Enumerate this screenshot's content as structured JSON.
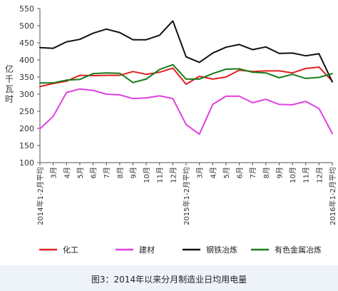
{
  "figure": {
    "caption": "图3：2014年以来分月制造业日均用电量"
  },
  "chart_data": {
    "type": "line",
    "ylabel": "亿千瓦时",
    "ylim": [
      100,
      550
    ],
    "yticks": [
      100,
      150,
      200,
      250,
      300,
      350,
      400,
      450,
      500,
      550
    ],
    "categories": [
      "2014年1-2月平均",
      "3月",
      "4月",
      "5月",
      "6月",
      "7月",
      "8月",
      "9月",
      "10月",
      "11月",
      "12月",
      "2015年1-2月平均",
      "3月",
      "4月",
      "5月",
      "6月",
      "7月",
      "8月",
      "9月",
      "10月",
      "11月",
      "12月",
      "2016年1-2月平均"
    ],
    "grid": false,
    "legend": "bottom",
    "series": [
      {
        "name": "化工",
        "color": "#e02020",
        "values": [
          322,
          331,
          338,
          355,
          354,
          355,
          355,
          366,
          358,
          364,
          376,
          329,
          352,
          344,
          350,
          370,
          366,
          368,
          368,
          362,
          375,
          379,
          338
        ]
      },
      {
        "name": "建材",
        "color": "#e040e0",
        "values": [
          199,
          235,
          305,
          315,
          311,
          300,
          298,
          287,
          289,
          295,
          287,
          211,
          183,
          270,
          294,
          294,
          275,
          285,
          270,
          269,
          279,
          258,
          185
        ]
      },
      {
        "name": "钢铁冶炼",
        "color": "#111111",
        "values": [
          436,
          434,
          453,
          460,
          478,
          490,
          480,
          459,
          459,
          472,
          514,
          409,
          393,
          420,
          437,
          445,
          430,
          438,
          419,
          420,
          412,
          418,
          336
        ]
      },
      {
        "name": "有色金属冶炼",
        "color": "#1a7a1a",
        "values": [
          333,
          333,
          341,
          343,
          360,
          362,
          361,
          334,
          344,
          372,
          386,
          344,
          344,
          360,
          373,
          374,
          364,
          362,
          348,
          358,
          346,
          349,
          360
        ]
      }
    ]
  }
}
